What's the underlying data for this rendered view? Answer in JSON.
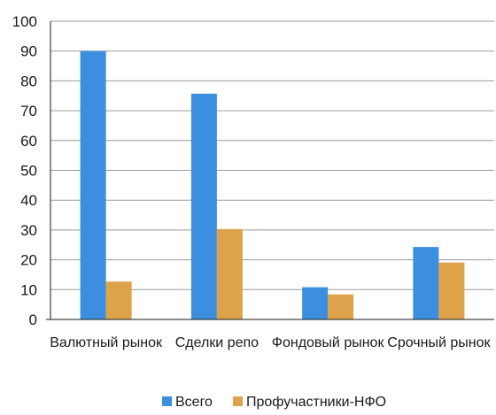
{
  "chart_data": {
    "type": "bar",
    "categories": [
      "Валютный рынок",
      "Сделки репо",
      "Фондовый рынок",
      "Срочный рынок"
    ],
    "series": [
      {
        "name": "Всего",
        "color": "#3b8fde",
        "values": [
          90,
          75.7,
          10.8,
          24.3
        ]
      },
      {
        "name": "Профучастники-НФО",
        "color": "#dda24a",
        "values": [
          12.7,
          30.3,
          8.4,
          19.1
        ]
      }
    ],
    "ylim": [
      0,
      100
    ],
    "yticks": [
      0,
      10,
      20,
      30,
      40,
      50,
      60,
      70,
      80,
      90,
      100
    ],
    "grid": true,
    "legend_position": "bottom"
  }
}
